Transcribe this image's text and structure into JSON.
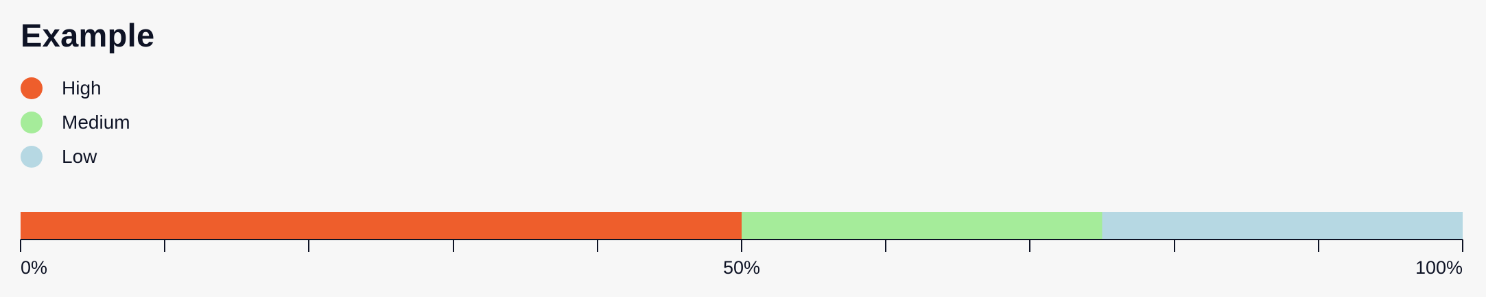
{
  "chart_data": {
    "type": "bar",
    "orientation": "horizontal-stacked",
    "title": "Example",
    "series": [
      {
        "name": "High",
        "value": 50,
        "color": "#ee5e2c"
      },
      {
        "name": "Medium",
        "value": 25,
        "color": "#a5ec9a"
      },
      {
        "name": "Low",
        "value": 25,
        "color": "#b6d8e3"
      }
    ],
    "unit": "%",
    "xlim": [
      0,
      100
    ],
    "ticks": [
      0,
      10,
      20,
      30,
      40,
      50,
      60,
      70,
      80,
      90,
      100
    ],
    "tick_labels": [
      {
        "value": 0,
        "label": "0%"
      },
      {
        "value": 50,
        "label": "50%"
      },
      {
        "value": 100,
        "label": "100%"
      }
    ],
    "legend_position": "top-left",
    "grid": false
  }
}
